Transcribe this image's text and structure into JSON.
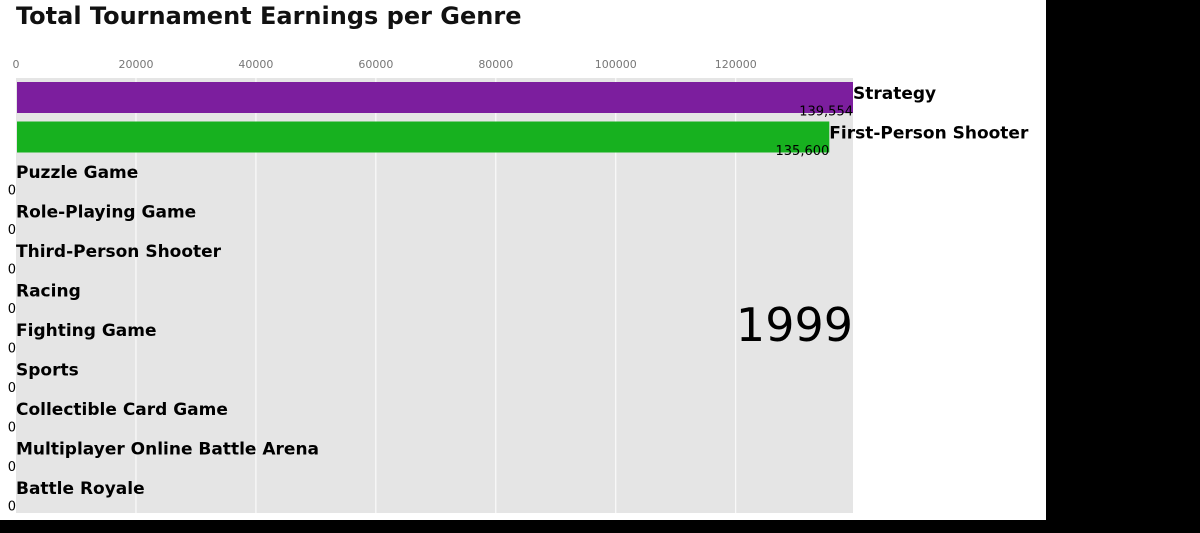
{
  "chart_data": {
    "type": "bar",
    "orientation": "horizontal",
    "title": "Total Tournament Earnings per Genre",
    "xlabel": "",
    "ylabel": "",
    "xlim": [
      0,
      139554
    ],
    "x_ticks": [
      0,
      20000,
      40000,
      60000,
      80000,
      100000,
      120000
    ],
    "grid": true,
    "period_label": "1999",
    "categories": [
      "Strategy",
      "First-Person Shooter",
      "Puzzle Game",
      "Role-Playing Game",
      "Third-Person Shooter",
      "Racing",
      "Fighting Game",
      "Sports",
      "Collectible Card Game",
      "Multiplayer Online Battle Arena",
      "Battle Royale"
    ],
    "values": [
      139554,
      135600,
      0,
      0,
      0,
      0,
      0,
      0,
      0,
      0,
      0
    ],
    "value_labels": [
      "139,554",
      "135,600",
      "0",
      "0",
      "0",
      "0",
      "0",
      "0",
      "0",
      "0",
      "0"
    ],
    "colors": [
      "#7c1e9e",
      "#17b11f",
      "#888888",
      "#888888",
      "#888888",
      "#888888",
      "#888888",
      "#888888",
      "#888888",
      "#888888",
      "#888888"
    ],
    "background_color": "#e5e5e5",
    "grid_color": "#ffffff"
  }
}
